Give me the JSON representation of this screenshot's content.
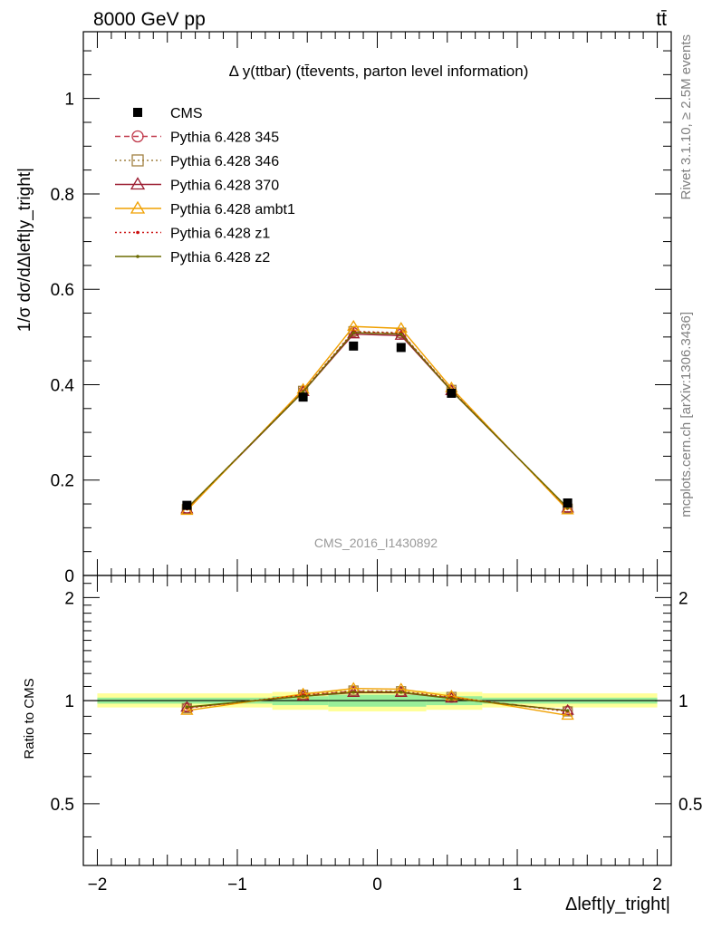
{
  "header": {
    "energy_label": "8000 GeV pp",
    "process_label": "tt̄",
    "rivet_label": "Rivet 3.1.10, ≥ 2.5M events",
    "mcplots_label": "mcplots.cern.ch [arXiv:1306.3436]",
    "analysis_label": "CMS_2016_I1430892"
  },
  "colors": {
    "cms": "#000000",
    "p345": "#c0394b",
    "p346": "#a08040",
    "p370": "#9b1b30",
    "ambt1": "#f0a000",
    "z1": "#cc1111",
    "z2": "#6b6b00",
    "band_inner": "#99ee99",
    "band_outer": "#ffff99",
    "analysis": "#999999",
    "side_text": "#808080"
  },
  "chart_data": [
    {
      "type": "line",
      "title": "Δ y(ttbar) (tt̄events, parton level information)",
      "ylabel": "1/σ dσ/dΔleft|y_tright|",
      "xlim": [
        -2.1,
        2.1
      ],
      "ylim": [
        0,
        1.14
      ],
      "yticks": [
        0,
        0.2,
        0.4,
        0.6,
        0.8,
        1
      ],
      "ytick_labels": [
        "0",
        "0.2",
        "0.4",
        "0.6",
        "0.8",
        "1"
      ],
      "legend_position": "top-left",
      "data_series": {
        "name": "CMS",
        "x": [
          -1.36,
          -0.53,
          -0.17,
          0.17,
          0.53,
          1.36
        ],
        "y": [
          0.147,
          0.374,
          0.481,
          0.478,
          0.382,
          0.152
        ]
      },
      "series": [
        {
          "name": "Pythia 6.428 345",
          "style": "dashed",
          "marker": "circle",
          "color_key": "p345",
          "x": [
            -1.36,
            -0.53,
            -0.17,
            0.17,
            0.53,
            1.36
          ],
          "y": [
            0.14,
            0.386,
            0.51,
            0.507,
            0.388,
            0.141
          ]
        },
        {
          "name": "Pythia 6.428 346",
          "style": "dotted",
          "marker": "square",
          "color_key": "p346",
          "x": [
            -1.36,
            -0.53,
            -0.17,
            0.17,
            0.53,
            1.36
          ],
          "y": [
            0.139,
            0.387,
            0.512,
            0.509,
            0.389,
            0.14
          ]
        },
        {
          "name": "Pythia 6.428 370",
          "style": "solid",
          "marker": "triangle",
          "color_key": "p370",
          "x": [
            -1.36,
            -0.53,
            -0.17,
            0.17,
            0.53,
            1.36
          ],
          "y": [
            0.139,
            0.385,
            0.506,
            0.503,
            0.387,
            0.141
          ]
        },
        {
          "name": "Pythia 6.428 ambt1",
          "style": "solid",
          "marker": "triangle",
          "color_key": "ambt1",
          "x": [
            -1.36,
            -0.53,
            -0.17,
            0.17,
            0.53,
            1.36
          ],
          "y": [
            0.136,
            0.39,
            0.522,
            0.518,
            0.393,
            0.137
          ]
        },
        {
          "name": "Pythia 6.428 z1",
          "style": "dotted",
          "marker": "dot",
          "color_key": "z1",
          "x": [
            -1.36,
            -0.53,
            -0.17,
            0.17,
            0.53,
            1.36
          ],
          "y": [
            0.14,
            0.386,
            0.511,
            0.508,
            0.388,
            0.141
          ]
        },
        {
          "name": "Pythia 6.428 z2",
          "style": "solid",
          "marker": "dot",
          "color_key": "z2",
          "x": [
            -1.36,
            -0.53,
            -0.17,
            0.17,
            0.53,
            1.36
          ],
          "y": [
            0.141,
            0.385,
            0.509,
            0.506,
            0.387,
            0.142
          ]
        }
      ]
    },
    {
      "type": "line",
      "title": "",
      "ylabel": "Ratio to CMS",
      "xlabel": "Δleft|y_tright|",
      "xlim": [
        -2.1,
        2.1
      ],
      "ylim": [
        0.33,
        2.32
      ],
      "yscale": "log",
      "xticks": [
        -2,
        -1,
        0,
        1,
        2
      ],
      "xtick_labels": [
        "−2",
        "−1",
        "0",
        "1",
        "2"
      ],
      "yticks": [
        0.5,
        1,
        2
      ],
      "ytick_labels": [
        "0.5",
        "1",
        "2"
      ],
      "bins": [
        -2.0,
        -0.75,
        -0.35,
        0.0,
        0.35,
        0.75,
        2.0
      ],
      "band_inner": [
        [
          0.98,
          1.02
        ],
        [
          0.97,
          1.03
        ],
        [
          0.96,
          1.04
        ],
        [
          0.96,
          1.04
        ],
        [
          0.97,
          1.03
        ],
        [
          0.98,
          1.02
        ]
      ],
      "band_outer": [
        [
          0.955,
          1.05
        ],
        [
          0.94,
          1.06
        ],
        [
          0.93,
          1.07
        ],
        [
          0.93,
          1.07
        ],
        [
          0.94,
          1.06
        ],
        [
          0.955,
          1.05
        ]
      ],
      "series": [
        {
          "name": "Pythia 6.428 345",
          "color_key": "p345",
          "style": "dashed",
          "marker": "circle",
          "x": [
            -1.36,
            -0.53,
            -0.17,
            0.17,
            0.53,
            1.36
          ],
          "y": [
            0.955,
            1.035,
            1.065,
            1.06,
            1.02,
            0.935
          ]
        },
        {
          "name": "Pythia 6.428 346",
          "color_key": "p346",
          "style": "dotted",
          "marker": "square",
          "x": [
            -1.36,
            -0.53,
            -0.17,
            0.17,
            0.53,
            1.36
          ],
          "y": [
            0.95,
            1.04,
            1.07,
            1.065,
            1.025,
            0.93
          ]
        },
        {
          "name": "Pythia 6.428 370",
          "color_key": "p370",
          "style": "solid",
          "marker": "triangle",
          "x": [
            -1.36,
            -0.53,
            -0.17,
            0.17,
            0.53,
            1.36
          ],
          "y": [
            0.955,
            1.03,
            1.055,
            1.055,
            1.015,
            0.935
          ]
        },
        {
          "name": "Pythia 6.428 ambt1",
          "color_key": "ambt1",
          "style": "solid",
          "marker": "triangle",
          "x": [
            -1.36,
            -0.53,
            -0.17,
            0.17,
            0.53,
            1.36
          ],
          "y": [
            0.935,
            1.045,
            1.085,
            1.08,
            1.03,
            0.905
          ]
        },
        {
          "name": "Pythia 6.428 z1",
          "color_key": "z1",
          "style": "dotted",
          "marker": "dot",
          "x": [
            -1.36,
            -0.53,
            -0.17,
            0.17,
            0.53,
            1.36
          ],
          "y": [
            0.952,
            1.038,
            1.062,
            1.062,
            1.02,
            0.93
          ]
        },
        {
          "name": "Pythia 6.428 z2",
          "color_key": "z2",
          "style": "solid",
          "marker": "dot",
          "x": [
            -1.36,
            -0.53,
            -0.17,
            0.17,
            0.53,
            1.36
          ],
          "y": [
            0.958,
            1.03,
            1.058,
            1.058,
            1.015,
            0.935
          ]
        }
      ]
    }
  ]
}
